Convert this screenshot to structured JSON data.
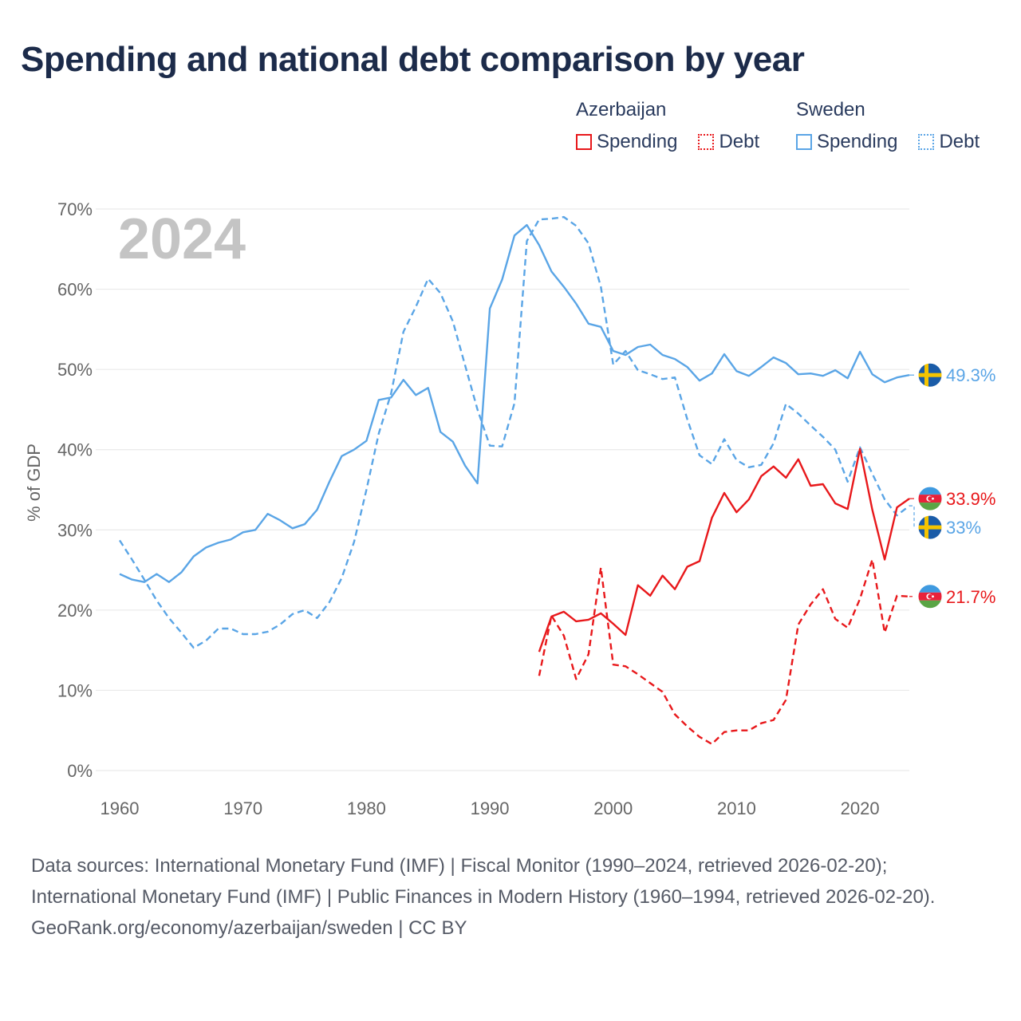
{
  "title": "Spending and national debt comparison by year",
  "legend": {
    "groups": [
      {
        "country": "Azerbaijan",
        "items": [
          {
            "label": "Spending",
            "style": "solid"
          },
          {
            "label": "Debt",
            "style": "dotted"
          }
        ]
      },
      {
        "country": "Sweden",
        "items": [
          {
            "label": "Spending",
            "style": "solid"
          },
          {
            "label": "Debt",
            "style": "dotted"
          }
        ]
      }
    ]
  },
  "footer": {
    "sources": "Data sources: International Monetary Fund (IMF) | Fiscal Monitor (1990–2024, retrieved 2026-02-20); International Monetary Fund (IMF) | Public Finances in Modern History (1960–1994, retrieved 2026-02-20).",
    "credit": "GeoRank.org/economy/azerbaijan/sweden | CC BY"
  },
  "icons": {
    "sweden_flag": "sweden-flag-icon",
    "azerbaijan_flag": "azerbaijan-flag-icon"
  },
  "chart_data": {
    "type": "line",
    "title": "Spending and national debt comparison by year",
    "year_label": "2024",
    "ylabel": "% of GDP",
    "xlabel": "",
    "xlim": [
      1960,
      2024
    ],
    "ylim": [
      0,
      70
    ],
    "x_ticks": [
      1960,
      1970,
      1980,
      1990,
      2000,
      2010,
      2020
    ],
    "y_ticks": [
      0,
      10,
      20,
      30,
      40,
      50,
      60,
      70
    ],
    "y_tick_labels": [
      "0%",
      "10%",
      "20%",
      "30%",
      "40%",
      "50%",
      "60%",
      "70%"
    ],
    "grid": true,
    "series": [
      {
        "name": "Sweden Spending",
        "country": "Sweden",
        "metric": "Spending",
        "color": "#5aa5e6",
        "dash": "solid",
        "end_label": "49.3%",
        "flag": "sweden",
        "points": [
          [
            1960,
            24.5
          ],
          [
            1961,
            23.8
          ],
          [
            1962,
            23.5
          ],
          [
            1963,
            24.5
          ],
          [
            1964,
            23.5
          ],
          [
            1965,
            24.7
          ],
          [
            1966,
            26.7
          ],
          [
            1967,
            27.8
          ],
          [
            1968,
            28.4
          ],
          [
            1969,
            28.8
          ],
          [
            1970,
            29.7
          ],
          [
            1971,
            30
          ],
          [
            1972,
            32
          ],
          [
            1973,
            31.2
          ],
          [
            1974,
            30.2
          ],
          [
            1975,
            30.7
          ],
          [
            1976,
            32.5
          ],
          [
            1977,
            36
          ],
          [
            1978,
            39.2
          ],
          [
            1979,
            40
          ],
          [
            1980,
            41.1
          ],
          [
            1981,
            46.2
          ],
          [
            1982,
            46.5
          ],
          [
            1983,
            48.7
          ],
          [
            1984,
            46.8
          ],
          [
            1985,
            47.7
          ],
          [
            1986,
            42.2
          ],
          [
            1987,
            41
          ],
          [
            1988,
            38
          ],
          [
            1989,
            35.8
          ],
          [
            1990,
            57.6
          ],
          [
            1991,
            61.2
          ],
          [
            1992,
            66.7
          ],
          [
            1993,
            68
          ],
          [
            1994,
            65.5
          ],
          [
            1995,
            62.2
          ],
          [
            1996,
            60.3
          ],
          [
            1997,
            58.2
          ],
          [
            1998,
            55.7
          ],
          [
            1999,
            55.3
          ],
          [
            2000,
            52.3
          ],
          [
            2001,
            51.8
          ],
          [
            2002,
            52.8
          ],
          [
            2003,
            53.1
          ],
          [
            2004,
            51.8
          ],
          [
            2005,
            51.3
          ],
          [
            2006,
            50.3
          ],
          [
            2007,
            48.6
          ],
          [
            2008,
            49.5
          ],
          [
            2009,
            51.9
          ],
          [
            2010,
            49.8
          ],
          [
            2011,
            49.2
          ],
          [
            2012,
            50.3
          ],
          [
            2013,
            51.5
          ],
          [
            2014,
            50.8
          ],
          [
            2015,
            49.4
          ],
          [
            2016,
            49.5
          ],
          [
            2017,
            49.2
          ],
          [
            2018,
            49.9
          ],
          [
            2019,
            48.9
          ],
          [
            2020,
            52.2
          ],
          [
            2021,
            49.4
          ],
          [
            2022,
            48.4
          ],
          [
            2023,
            49
          ],
          [
            2024,
            49.3
          ]
        ]
      },
      {
        "name": "Sweden Debt",
        "country": "Sweden",
        "metric": "Debt",
        "color": "#5aa5e6",
        "dash": "dashed",
        "end_label": "33%",
        "flag": "sweden",
        "points": [
          [
            1960,
            28.7
          ],
          [
            1961,
            26.3
          ],
          [
            1962,
            23.8
          ],
          [
            1963,
            21.2
          ],
          [
            1964,
            19
          ],
          [
            1965,
            17.2
          ],
          [
            1966,
            15.3
          ],
          [
            1967,
            16.2
          ],
          [
            1968,
            17.7
          ],
          [
            1969,
            17.7
          ],
          [
            1970,
            17
          ],
          [
            1971,
            17
          ],
          [
            1972,
            17.3
          ],
          [
            1973,
            18.2
          ],
          [
            1974,
            19.5
          ],
          [
            1975,
            20
          ],
          [
            1976,
            19
          ],
          [
            1977,
            21
          ],
          [
            1978,
            24
          ],
          [
            1979,
            28.5
          ],
          [
            1980,
            35
          ],
          [
            1981,
            42
          ],
          [
            1982,
            47
          ],
          [
            1983,
            54.7
          ],
          [
            1984,
            57.8
          ],
          [
            1985,
            61.3
          ],
          [
            1986,
            59.5
          ],
          [
            1987,
            56
          ],
          [
            1988,
            50.5
          ],
          [
            1989,
            45
          ],
          [
            1990,
            40.5
          ],
          [
            1991,
            40.4
          ],
          [
            1992,
            45.8
          ],
          [
            1993,
            66
          ],
          [
            1994,
            68.7
          ],
          [
            1995,
            68.8
          ],
          [
            1996,
            69
          ],
          [
            1997,
            67.9
          ],
          [
            1998,
            65.7
          ],
          [
            1999,
            60.3
          ],
          [
            2000,
            50.6
          ],
          [
            2001,
            52.3
          ],
          [
            2002,
            49.9
          ],
          [
            2003,
            49.4
          ],
          [
            2004,
            48.8
          ],
          [
            2005,
            49
          ],
          [
            2006,
            43.8
          ],
          [
            2007,
            39.3
          ],
          [
            2008,
            38.2
          ],
          [
            2009,
            41.3
          ],
          [
            2010,
            38.7
          ],
          [
            2011,
            37.8
          ],
          [
            2012,
            38.1
          ],
          [
            2013,
            40.8
          ],
          [
            2014,
            45.7
          ],
          [
            2015,
            44.5
          ],
          [
            2016,
            43
          ],
          [
            2017,
            41.6
          ],
          [
            2018,
            40
          ],
          [
            2019,
            36
          ],
          [
            2020,
            40.3
          ],
          [
            2021,
            37
          ],
          [
            2022,
            33.8
          ],
          [
            2023,
            31.8
          ],
          [
            2024,
            33
          ]
        ]
      },
      {
        "name": "Azerbaijan Spending",
        "country": "Azerbaijan",
        "metric": "Spending",
        "color": "#e8181b",
        "dash": "solid",
        "end_label": "33.9%",
        "flag": "azerbaijan",
        "points": [
          [
            1994,
            14.8
          ],
          [
            1995,
            19.2
          ],
          [
            1996,
            19.8
          ],
          [
            1997,
            18.6
          ],
          [
            1998,
            18.8
          ],
          [
            1999,
            19.6
          ],
          [
            2000,
            18.3
          ],
          [
            2001,
            16.9
          ],
          [
            2002,
            23.1
          ],
          [
            2003,
            21.8
          ],
          [
            2004,
            24.3
          ],
          [
            2005,
            22.6
          ],
          [
            2006,
            25.4
          ],
          [
            2007,
            26.1
          ],
          [
            2008,
            31.5
          ],
          [
            2009,
            34.6
          ],
          [
            2010,
            32.2
          ],
          [
            2011,
            33.8
          ],
          [
            2012,
            36.7
          ],
          [
            2013,
            37.9
          ],
          [
            2014,
            36.5
          ],
          [
            2015,
            38.8
          ],
          [
            2016,
            35.5
          ],
          [
            2017,
            35.7
          ],
          [
            2018,
            33.3
          ],
          [
            2019,
            32.6
          ],
          [
            2020,
            40.1
          ],
          [
            2021,
            32.5
          ],
          [
            2022,
            26.3
          ],
          [
            2023,
            32.8
          ],
          [
            2024,
            33.9
          ]
        ]
      },
      {
        "name": "Azerbaijan Debt",
        "country": "Azerbaijan",
        "metric": "Debt",
        "color": "#e8181b",
        "dash": "dashed",
        "end_label": "21.7%",
        "flag": "azerbaijan",
        "points": [
          [
            1994,
            11.8
          ],
          [
            1995,
            19.3
          ],
          [
            1996,
            16.8
          ],
          [
            1997,
            11.4
          ],
          [
            1998,
            14.5
          ],
          [
            1999,
            25.3
          ],
          [
            2000,
            13.2
          ],
          [
            2001,
            13
          ],
          [
            2002,
            12
          ],
          [
            2003,
            10.9
          ],
          [
            2004,
            9.8
          ],
          [
            2005,
            7
          ],
          [
            2006,
            5.5
          ],
          [
            2007,
            4.2
          ],
          [
            2008,
            3.3
          ],
          [
            2009,
            4.8
          ],
          [
            2010,
            5
          ],
          [
            2011,
            5
          ],
          [
            2012,
            5.9
          ],
          [
            2013,
            6.3
          ],
          [
            2014,
            8.8
          ],
          [
            2015,
            18.2
          ],
          [
            2016,
            20.7
          ],
          [
            2017,
            22.6
          ],
          [
            2018,
            18.9
          ],
          [
            2019,
            17.8
          ],
          [
            2020,
            21.4
          ],
          [
            2021,
            26.3
          ],
          [
            2022,
            17.2
          ],
          [
            2023,
            21.8
          ],
          [
            2024,
            21.7
          ]
        ]
      }
    ]
  }
}
